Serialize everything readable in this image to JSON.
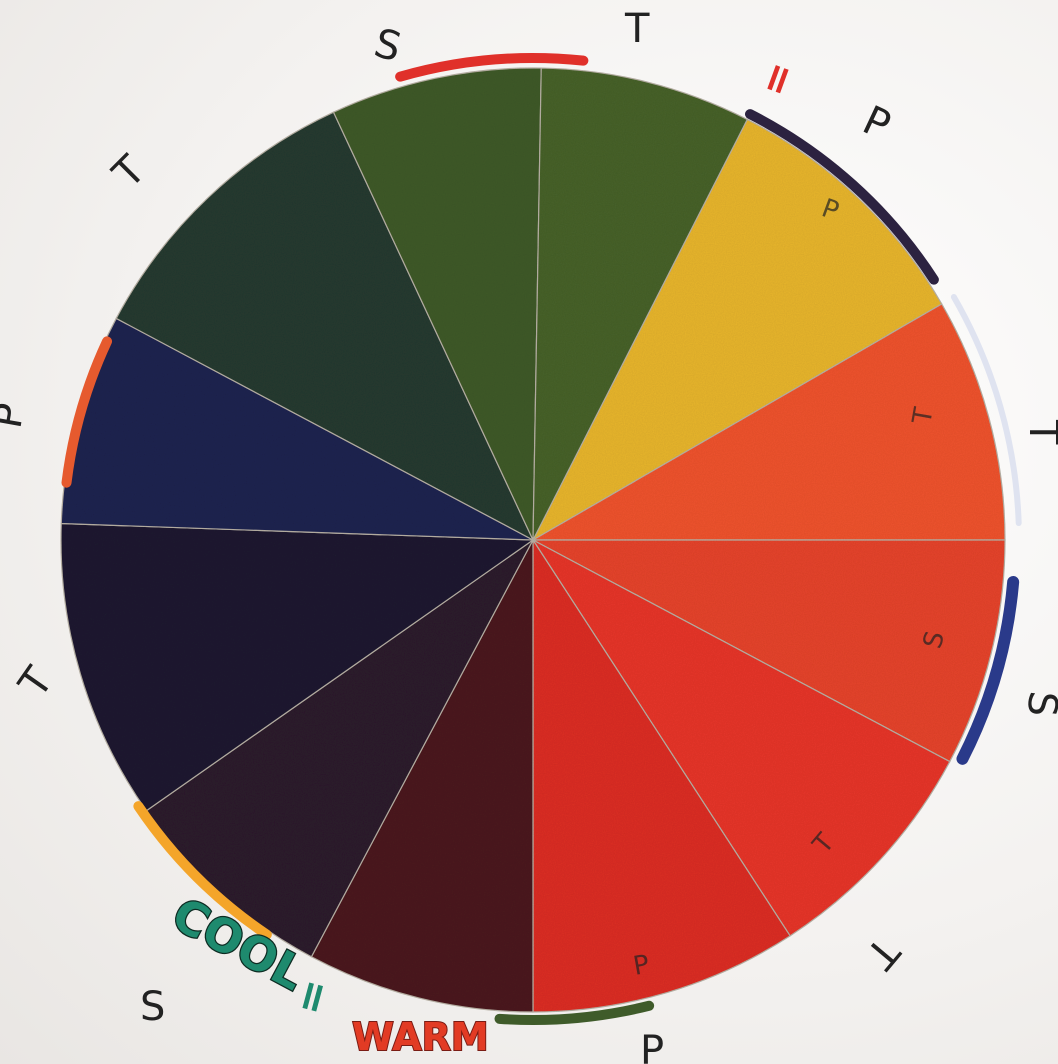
{
  "wheel": {
    "segments": [
      {
        "name": "yellow",
        "color": "#e9b62d",
        "inner_label": "P"
      },
      {
        "name": "red-orange",
        "color": "#f0532e",
        "inner_label": "T"
      },
      {
        "name": "red-orange-2",
        "color": "#e7442b",
        "inner_label": "S"
      },
      {
        "name": "red",
        "color": "#e8352a",
        "inner_label": "T"
      },
      {
        "name": "red-2",
        "color": "#dd2e22",
        "inner_label": "P"
      },
      {
        "name": "dark-red",
        "color": "#4b1a1e",
        "inner_label": ""
      },
      {
        "name": "dark-purple",
        "color": "#2d1b2c",
        "inner_label": ""
      },
      {
        "name": "very-dark-navy",
        "color": "#1d1a30",
        "inner_label": ""
      },
      {
        "name": "navy",
        "color": "#1f2250",
        "inner_label": ""
      },
      {
        "name": "dark-green",
        "color": "#263a30",
        "inner_label": ""
      },
      {
        "name": "olive-green",
        "color": "#3f5a28",
        "inner_label": ""
      },
      {
        "name": "green",
        "color": "#47622a",
        "inner_label": ""
      }
    ],
    "outer_labels": [
      "S",
      "T",
      "P",
      "T",
      "S",
      "T",
      "P",
      "S",
      "T",
      "P",
      "T"
    ],
    "caption_cool": "COOL",
    "caption_warm": "WARM",
    "equals_sign": "=",
    "colors": {
      "cool_text": "#1e8a6e",
      "warm_text": "#e23b24",
      "arc_red": "#e0302a",
      "arc_purple": "#2c2240",
      "arc_blue": "#2a3a8a",
      "arc_green": "#3f5b2a",
      "arc_orange": "#f4a52a",
      "arc_redorange": "#e65a2e"
    }
  }
}
